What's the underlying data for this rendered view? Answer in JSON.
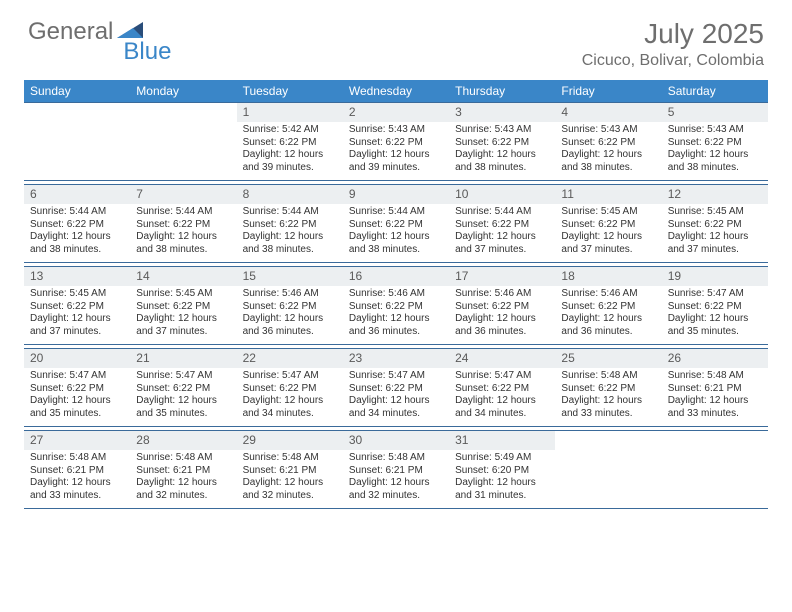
{
  "logo": {
    "general": "General",
    "blue": "Blue"
  },
  "title": "July 2025",
  "location": "Cicuco, Bolivar, Colombia",
  "colors": {
    "header_bg": "#3a86c8",
    "header_text": "#ffffff",
    "daynum_bg": "#eceff1",
    "daynum_text": "#5a5a5a",
    "body_text": "#333333",
    "rule": "#3a6a9a",
    "logo_gray": "#6e6e6e",
    "logo_blue": "#3a86c8"
  },
  "weekdays": [
    "Sunday",
    "Monday",
    "Tuesday",
    "Wednesday",
    "Thursday",
    "Friday",
    "Saturday"
  ],
  "weeks": [
    [
      null,
      null,
      {
        "n": "1",
        "sr": "5:42 AM",
        "ss": "6:22 PM",
        "dl": "12 hours and 39 minutes."
      },
      {
        "n": "2",
        "sr": "5:43 AM",
        "ss": "6:22 PM",
        "dl": "12 hours and 39 minutes."
      },
      {
        "n": "3",
        "sr": "5:43 AM",
        "ss": "6:22 PM",
        "dl": "12 hours and 38 minutes."
      },
      {
        "n": "4",
        "sr": "5:43 AM",
        "ss": "6:22 PM",
        "dl": "12 hours and 38 minutes."
      },
      {
        "n": "5",
        "sr": "5:43 AM",
        "ss": "6:22 PM",
        "dl": "12 hours and 38 minutes."
      }
    ],
    [
      {
        "n": "6",
        "sr": "5:44 AM",
        "ss": "6:22 PM",
        "dl": "12 hours and 38 minutes."
      },
      {
        "n": "7",
        "sr": "5:44 AM",
        "ss": "6:22 PM",
        "dl": "12 hours and 38 minutes."
      },
      {
        "n": "8",
        "sr": "5:44 AM",
        "ss": "6:22 PM",
        "dl": "12 hours and 38 minutes."
      },
      {
        "n": "9",
        "sr": "5:44 AM",
        "ss": "6:22 PM",
        "dl": "12 hours and 38 minutes."
      },
      {
        "n": "10",
        "sr": "5:44 AM",
        "ss": "6:22 PM",
        "dl": "12 hours and 37 minutes."
      },
      {
        "n": "11",
        "sr": "5:45 AM",
        "ss": "6:22 PM",
        "dl": "12 hours and 37 minutes."
      },
      {
        "n": "12",
        "sr": "5:45 AM",
        "ss": "6:22 PM",
        "dl": "12 hours and 37 minutes."
      }
    ],
    [
      {
        "n": "13",
        "sr": "5:45 AM",
        "ss": "6:22 PM",
        "dl": "12 hours and 37 minutes."
      },
      {
        "n": "14",
        "sr": "5:45 AM",
        "ss": "6:22 PM",
        "dl": "12 hours and 37 minutes."
      },
      {
        "n": "15",
        "sr": "5:46 AM",
        "ss": "6:22 PM",
        "dl": "12 hours and 36 minutes."
      },
      {
        "n": "16",
        "sr": "5:46 AM",
        "ss": "6:22 PM",
        "dl": "12 hours and 36 minutes."
      },
      {
        "n": "17",
        "sr": "5:46 AM",
        "ss": "6:22 PM",
        "dl": "12 hours and 36 minutes."
      },
      {
        "n": "18",
        "sr": "5:46 AM",
        "ss": "6:22 PM",
        "dl": "12 hours and 36 minutes."
      },
      {
        "n": "19",
        "sr": "5:47 AM",
        "ss": "6:22 PM",
        "dl": "12 hours and 35 minutes."
      }
    ],
    [
      {
        "n": "20",
        "sr": "5:47 AM",
        "ss": "6:22 PM",
        "dl": "12 hours and 35 minutes."
      },
      {
        "n": "21",
        "sr": "5:47 AM",
        "ss": "6:22 PM",
        "dl": "12 hours and 35 minutes."
      },
      {
        "n": "22",
        "sr": "5:47 AM",
        "ss": "6:22 PM",
        "dl": "12 hours and 34 minutes."
      },
      {
        "n": "23",
        "sr": "5:47 AM",
        "ss": "6:22 PM",
        "dl": "12 hours and 34 minutes."
      },
      {
        "n": "24",
        "sr": "5:47 AM",
        "ss": "6:22 PM",
        "dl": "12 hours and 34 minutes."
      },
      {
        "n": "25",
        "sr": "5:48 AM",
        "ss": "6:22 PM",
        "dl": "12 hours and 33 minutes."
      },
      {
        "n": "26",
        "sr": "5:48 AM",
        "ss": "6:21 PM",
        "dl": "12 hours and 33 minutes."
      }
    ],
    [
      {
        "n": "27",
        "sr": "5:48 AM",
        "ss": "6:21 PM",
        "dl": "12 hours and 33 minutes."
      },
      {
        "n": "28",
        "sr": "5:48 AM",
        "ss": "6:21 PM",
        "dl": "12 hours and 32 minutes."
      },
      {
        "n": "29",
        "sr": "5:48 AM",
        "ss": "6:21 PM",
        "dl": "12 hours and 32 minutes."
      },
      {
        "n": "30",
        "sr": "5:48 AM",
        "ss": "6:21 PM",
        "dl": "12 hours and 32 minutes."
      },
      {
        "n": "31",
        "sr": "5:49 AM",
        "ss": "6:20 PM",
        "dl": "12 hours and 31 minutes."
      },
      null,
      null
    ]
  ],
  "labels": {
    "sunrise": "Sunrise:",
    "sunset": "Sunset:",
    "daylight": "Daylight:"
  }
}
